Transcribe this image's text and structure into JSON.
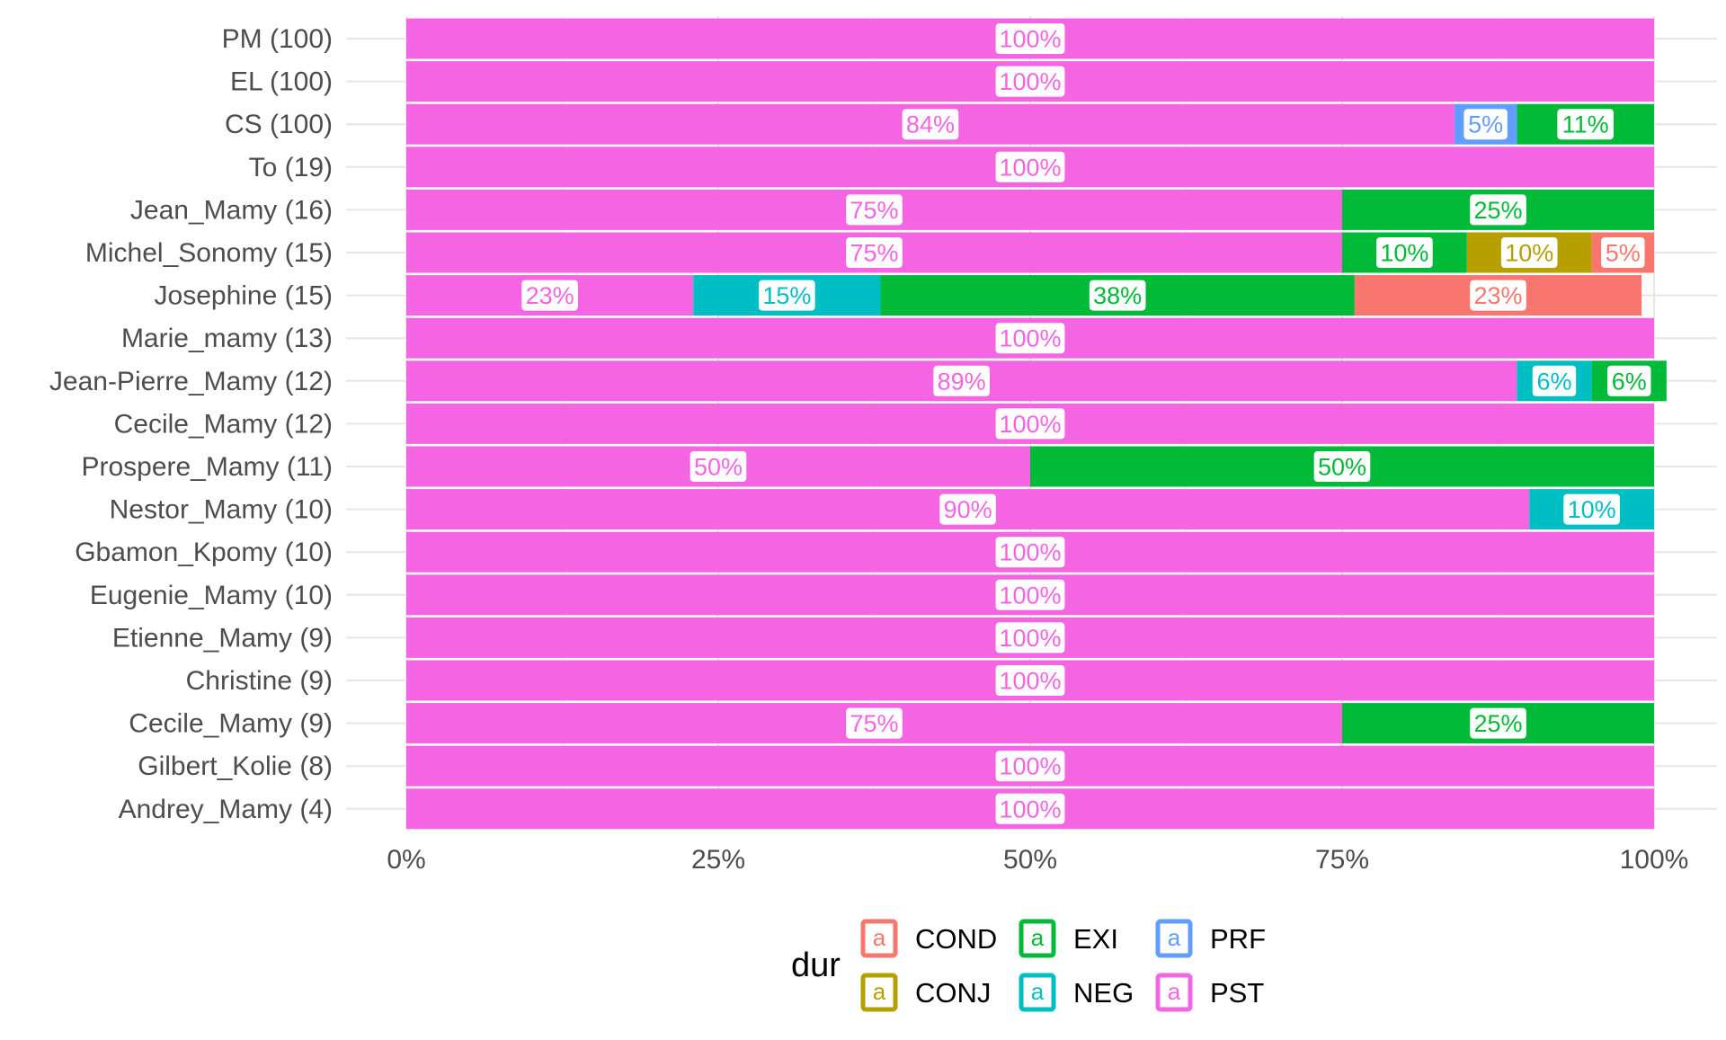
{
  "chart_data": {
    "type": "bar",
    "orientation": "horizontal",
    "stacked": "percent",
    "categories": [
      "PM (100)",
      "EL (100)",
      "CS (100)",
      "To (19)",
      "Jean_Mamy (16)",
      "Michel_Sonomy (15)",
      "Josephine (15)",
      "Marie_mamy (13)",
      "Jean-Pierre_Mamy (12)",
      "Cecile_Mamy (12)",
      "Prospere_Mamy (11)",
      "Nestor_Mamy (10)",
      "Gbamon_Kpomy (10)",
      "Eugenie_Mamy (10)",
      "Etienne_Mamy (9)",
      "Christine (9)",
      "Cecile_Mamy (9)",
      "Gilbert_Kolie (8)",
      "Andrey_Mamy (4)"
    ],
    "series": [
      {
        "name": "PST",
        "color": "#F564E3",
        "values": [
          100,
          100,
          84,
          100,
          75,
          75,
          23,
          100,
          89,
          100,
          50,
          90,
          100,
          100,
          100,
          100,
          75,
          100,
          100
        ]
      },
      {
        "name": "PRF",
        "color": "#619CFF",
        "values": [
          0,
          0,
          5,
          0,
          0,
          0,
          0,
          0,
          0,
          0,
          0,
          0,
          0,
          0,
          0,
          0,
          0,
          0,
          0
        ]
      },
      {
        "name": "NEG",
        "color": "#00BFC4",
        "values": [
          0,
          0,
          0,
          0,
          0,
          0,
          15,
          0,
          6,
          0,
          0,
          10,
          0,
          0,
          0,
          0,
          0,
          0,
          0
        ]
      },
      {
        "name": "EXI",
        "color": "#00BA38",
        "values": [
          0,
          0,
          11,
          0,
          25,
          10,
          38,
          0,
          6,
          0,
          50,
          0,
          0,
          0,
          0,
          0,
          25,
          0,
          0
        ]
      },
      {
        "name": "CONJ",
        "color": "#B79F00",
        "values": [
          0,
          0,
          0,
          0,
          0,
          10,
          0,
          0,
          0,
          0,
          0,
          0,
          0,
          0,
          0,
          0,
          0,
          0,
          0
        ]
      },
      {
        "name": "COND",
        "color": "#F8766D",
        "values": [
          0,
          0,
          0,
          0,
          0,
          5,
          23,
          0,
          0,
          0,
          0,
          0,
          0,
          0,
          0,
          0,
          0,
          0,
          0
        ]
      }
    ],
    "x_ticks": [
      "0%",
      "25%",
      "50%",
      "75%",
      "100%"
    ],
    "xlim": [
      0,
      100
    ],
    "xlabel": "",
    "ylabel": "",
    "grid": true,
    "legend": {
      "title": "dur",
      "position": "bottom",
      "entries": [
        "COND",
        "CONJ",
        "EXI",
        "NEG",
        "PRF",
        "PST"
      ],
      "key_glyph": "a"
    }
  }
}
